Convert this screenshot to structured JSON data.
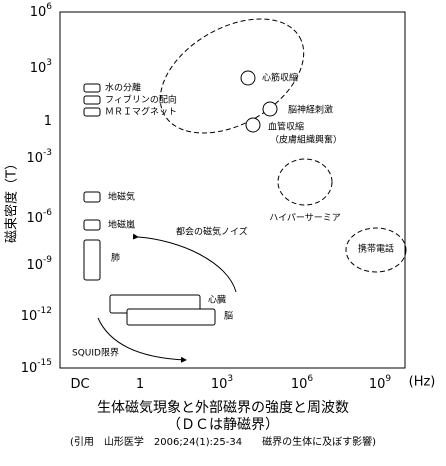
{
  "y_axis": {
    "title": "磁束密度（T）",
    "ticks": [
      {
        "base": "10",
        "exp": "6"
      },
      {
        "base": "10",
        "exp": "3"
      },
      {
        "base": "1"
      },
      {
        "base": "10",
        "exp": "-3"
      },
      {
        "base": "10",
        "exp": "-6"
      },
      {
        "base": "10",
        "exp": "-9"
      },
      {
        "base": "10",
        "exp": "-12"
      },
      {
        "base": "10",
        "exp": "-15"
      }
    ]
  },
  "x_axis": {
    "ticks": [
      {
        "base": "DC"
      },
      {
        "base": "1"
      },
      {
        "base": "10",
        "exp": "3"
      },
      {
        "base": "10",
        "exp": "6"
      },
      {
        "base": "10",
        "exp": "9"
      }
    ],
    "unit": "(Hz)"
  },
  "labels": {
    "water": "水の分離",
    "fibrin": "フィブリンの配向",
    "mri": "ＭＲＩマグネット",
    "geomagnetism": "地磁気",
    "storm": "地磁嵐",
    "lung": "肺",
    "heart": "心臓",
    "brain": "脳",
    "urban_noise": "都会の磁気ノイズ",
    "squid": "SQUID限界",
    "myocardial": "心筋収縮",
    "nerve": "脳神経刺激",
    "vascular": "血管収縮",
    "skin": "（皮膚組織興奮）",
    "hyperthermia": "ハイパーサーミア",
    "phone": "携帯電話"
  },
  "caption": {
    "title": "生体磁気現象と外部磁界の強度と周波数",
    "subtitle": "（ＤＣは静磁界）",
    "source": "(引用　山形医学　2006;24(1):25-34　　磁界の生体に及ぼす影響)"
  }
}
